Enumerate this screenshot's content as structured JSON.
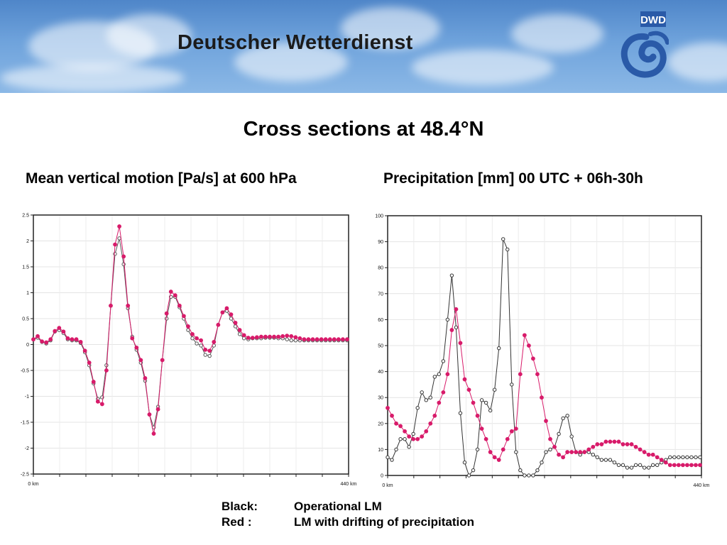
{
  "banner": {
    "title": "Deutscher Wetterdienst",
    "logo_text": "DWD",
    "colors": {
      "sky": "#6fa3dc",
      "logo": "#2a5aa8"
    }
  },
  "page_title": "Cross sections at 48.4°N",
  "legend": {
    "black_key": "Black:",
    "black_text": "Operational LM",
    "red_key": "Red :",
    "red_text": "LM with drifting of precipitation"
  },
  "chart_data": [
    {
      "type": "line",
      "title": "Mean vertical motion [Pa/s] at 600 hPa",
      "xlabel": "",
      "ylabel": "",
      "xlim": [
        0,
        440
      ],
      "ylim": [
        -2.5,
        2.5
      ],
      "x_tick_labels": [
        "0 km",
        "440 km"
      ],
      "y_ticks": [
        -2.5,
        -2,
        -1.5,
        -1,
        -0.5,
        0,
        0.5,
        1,
        1.5,
        2,
        2.5
      ],
      "y_tick_labels": [
        "-2.5",
        "-2",
        "-1.5",
        "-1",
        "-0.5",
        "0",
        "0.5",
        "1",
        "1.5",
        "2",
        "2.5"
      ],
      "grid": true,
      "x": [
        0,
        6,
        12,
        18,
        24,
        30,
        36,
        42,
        48,
        54,
        60,
        66,
        72,
        78,
        84,
        90,
        96,
        102,
        108,
        114,
        120,
        126,
        132,
        138,
        144,
        150,
        156,
        162,
        168,
        174,
        180,
        186,
        192,
        198,
        204,
        210,
        216,
        222,
        228,
        234,
        240,
        246,
        252,
        258,
        264,
        270,
        276,
        282,
        288,
        294,
        300,
        306,
        312,
        318,
        324,
        330,
        336,
        342,
        348,
        354,
        360,
        366,
        372,
        378,
        384,
        390,
        396,
        402,
        408,
        414,
        420,
        426,
        432,
        438
      ],
      "series": [
        {
          "name": "Black",
          "color": "#555555",
          "marker": "open-circle",
          "values": [
            0.1,
            0.13,
            0.05,
            0.02,
            0.08,
            0.25,
            0.28,
            0.22,
            0.1,
            0.08,
            0.08,
            0.03,
            -0.15,
            -0.4,
            -0.75,
            -1.05,
            -1.02,
            -0.4,
            0.75,
            1.75,
            2.05,
            1.55,
            0.7,
            0.15,
            -0.1,
            -0.35,
            -0.7,
            -1.35,
            -1.6,
            -1.2,
            -0.3,
            0.5,
            0.92,
            0.92,
            0.72,
            0.5,
            0.28,
            0.12,
            0.02,
            -0.02,
            -0.2,
            -0.22,
            -0.02,
            0.38,
            0.62,
            0.65,
            0.5,
            0.35,
            0.2,
            0.12,
            0.1,
            0.12,
            0.12,
            0.12,
            0.13,
            0.13,
            0.13,
            0.12,
            0.12,
            0.1,
            0.08,
            0.08,
            0.08,
            0.08,
            0.08,
            0.08,
            0.08,
            0.08,
            0.08,
            0.08,
            0.08,
            0.08,
            0.08,
            0.08
          ]
        },
        {
          "name": "Red",
          "color": "#d81b6a",
          "marker": "filled-circle",
          "values": [
            0.1,
            0.16,
            0.06,
            0.04,
            0.1,
            0.26,
            0.32,
            0.25,
            0.12,
            0.1,
            0.1,
            0.05,
            -0.12,
            -0.35,
            -0.72,
            -1.1,
            -1.15,
            -0.5,
            0.75,
            1.93,
            2.28,
            1.7,
            0.75,
            0.12,
            -0.06,
            -0.3,
            -0.65,
            -1.35,
            -1.72,
            -1.25,
            -0.3,
            0.6,
            1.02,
            0.95,
            0.75,
            0.55,
            0.35,
            0.2,
            0.12,
            0.08,
            -0.1,
            -0.12,
            0.05,
            0.38,
            0.62,
            0.7,
            0.58,
            0.42,
            0.28,
            0.18,
            0.13,
            0.13,
            0.14,
            0.15,
            0.15,
            0.15,
            0.15,
            0.15,
            0.16,
            0.17,
            0.16,
            0.14,
            0.12,
            0.1,
            0.1,
            0.1,
            0.1,
            0.1,
            0.1,
            0.1,
            0.1,
            0.1,
            0.1,
            0.1
          ]
        }
      ]
    },
    {
      "type": "line",
      "title": "Precipitation [mm]  00 UTC + 06h-30h",
      "xlabel": "",
      "ylabel": "",
      "xlim": [
        0,
        440
      ],
      "ylim": [
        0,
        100
      ],
      "x_tick_labels": [
        "0 km",
        "440 km"
      ],
      "y_ticks": [
        0,
        10,
        20,
        30,
        40,
        50,
        60,
        70,
        80,
        90,
        100
      ],
      "y_tick_labels": [
        "0",
        "10",
        "20",
        "30",
        "40",
        "50",
        "60",
        "70",
        "80",
        "90",
        "100"
      ],
      "grid": true,
      "x": [
        0,
        6,
        12,
        18,
        24,
        30,
        36,
        42,
        48,
        54,
        60,
        66,
        72,
        78,
        84,
        90,
        96,
        102,
        108,
        114,
        120,
        126,
        132,
        138,
        144,
        150,
        156,
        162,
        168,
        174,
        180,
        186,
        192,
        198,
        204,
        210,
        216,
        222,
        228,
        234,
        240,
        246,
        252,
        258,
        264,
        270,
        276,
        282,
        288,
        294,
        300,
        306,
        312,
        318,
        324,
        330,
        336,
        342,
        348,
        354,
        360,
        366,
        372,
        378,
        384,
        390,
        396,
        402,
        408,
        414,
        420,
        426,
        432,
        438
      ],
      "series": [
        {
          "name": "Black",
          "color": "#333333",
          "marker": "open-circle",
          "values": [
            7,
            6,
            10,
            14,
            14,
            11,
            16,
            26,
            32,
            29,
            30,
            38,
            39,
            44,
            60,
            77,
            57,
            24,
            5,
            0,
            2,
            10,
            29,
            28,
            25,
            33,
            49,
            91,
            87,
            35,
            9,
            2,
            0,
            0,
            0,
            2,
            5,
            9,
            10,
            11,
            16,
            22,
            23,
            15,
            9,
            8,
            9,
            9,
            8,
            7,
            6,
            6,
            6,
            5,
            4,
            4,
            3,
            3,
            4,
            4,
            3,
            3,
            4,
            4,
            5,
            6,
            7,
            7,
            7,
            7,
            7,
            7,
            7,
            7
          ]
        },
        {
          "name": "Red",
          "color": "#d81b6a",
          "marker": "filled-circle",
          "values": [
            26,
            23,
            20,
            19,
            17,
            15,
            14,
            14,
            15,
            17,
            20,
            23,
            28,
            32,
            39,
            56,
            64,
            51,
            37,
            33,
            28,
            23,
            18,
            14,
            9,
            7,
            6,
            10,
            14,
            17,
            18,
            39,
            54,
            50,
            45,
            39,
            30,
            21,
            14,
            11,
            8,
            7,
            9,
            9,
            9,
            9,
            9,
            10,
            11,
            12,
            12,
            13,
            13,
            13,
            13,
            12,
            12,
            12,
            11,
            10,
            9,
            8,
            8,
            7,
            6,
            5,
            4,
            4,
            4,
            4,
            4,
            4,
            4,
            4
          ]
        }
      ]
    }
  ]
}
